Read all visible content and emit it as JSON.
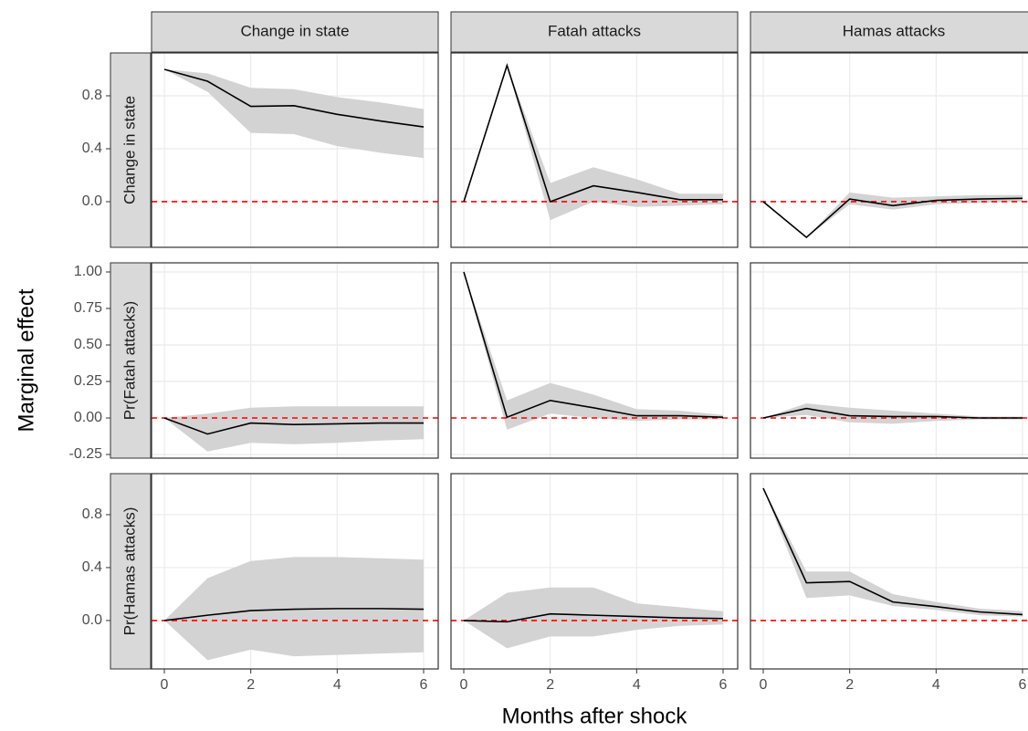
{
  "chart_data": {
    "type": "line",
    "x_label": "Months after shock",
    "y_label": "Marginal effect",
    "x": [
      0,
      1,
      2,
      3,
      4,
      5,
      6
    ],
    "xlim": [
      -0.296,
      6.338
    ],
    "xticks": [
      0,
      2,
      4,
      6
    ],
    "line_color": "#000000",
    "band_color": "#d3d3d3",
    "reference_line": 0,
    "reference_color": "#ff0000",
    "grid": true,
    "columns": [
      "Change in state",
      "Fatah attacks",
      "Hamas attacks"
    ],
    "rows": [
      {
        "strip": "Change in state",
        "ylim": [
          -0.345,
          1.124
        ],
        "yticks": [
          {
            "value": 0,
            "label": "0.0"
          },
          0.4,
          0.8
        ]
      },
      {
        "strip": "Pr(Fatah attacks)",
        "ylim": [
          -0.275,
          1.0625
        ],
        "yticks": [
          {
            "value": -0.25,
            "label": "-0.25"
          },
          {
            "value": 0,
            "label": "0.00"
          },
          0.25,
          {
            "value": 0.5,
            "label": "0.50"
          },
          0.75,
          {
            "value": 1,
            "label": "1.00"
          }
        ]
      },
      {
        "strip": "Pr(Hamas attacks)",
        "ylim": [
          -0.366,
          1.11
        ],
        "yticks": [
          {
            "value": 0,
            "label": "0.0"
          },
          0.4,
          0.8
        ]
      }
    ],
    "panels": [
      {
        "row": 0,
        "column": 0,
        "values": [
          1.0,
          0.91,
          0.72,
          0.725,
          0.66,
          0.61,
          0.565
        ],
        "lower": [
          1.0,
          0.83,
          0.52,
          0.51,
          0.42,
          0.37,
          0.33
        ],
        "upper": [
          1.0,
          0.97,
          0.86,
          0.85,
          0.79,
          0.75,
          0.7
        ]
      },
      {
        "row": 0,
        "column": 1,
        "values": [
          0,
          1.03,
          0.0,
          0.12,
          0.07,
          0.015,
          0.015
        ],
        "lower": [
          0,
          1.03,
          -0.14,
          0.0,
          -0.04,
          -0.03,
          -0.02
        ],
        "upper": [
          0,
          1.03,
          0.14,
          0.26,
          0.17,
          0.06,
          0.06
        ]
      },
      {
        "row": 0,
        "column": 2,
        "values": [
          0,
          -0.27,
          0.02,
          -0.03,
          0.01,
          0.02,
          0.025
        ],
        "lower": [
          0,
          -0.27,
          -0.02,
          -0.06,
          -0.02,
          -0.01,
          0.0
        ],
        "upper": [
          0,
          -0.27,
          0.07,
          0.03,
          0.04,
          0.05,
          0.05
        ]
      },
      {
        "row": 1,
        "column": 0,
        "values": [
          0,
          -0.11,
          -0.035,
          -0.045,
          -0.04,
          -0.035,
          -0.035
        ],
        "lower": [
          0,
          -0.23,
          -0.17,
          -0.18,
          -0.17,
          -0.155,
          -0.145
        ],
        "upper": [
          0,
          0.03,
          0.07,
          0.08,
          0.08,
          0.08,
          0.08
        ]
      },
      {
        "row": 1,
        "column": 1,
        "values": [
          1.0,
          0.005,
          0.12,
          0.07,
          0.015,
          0.015,
          0.005
        ],
        "lower": [
          1.0,
          -0.08,
          0.03,
          0.0,
          -0.02,
          -0.01,
          -0.01
        ],
        "upper": [
          1.0,
          0.12,
          0.24,
          0.16,
          0.06,
          0.05,
          0.02
        ]
      },
      {
        "row": 1,
        "column": 2,
        "values": [
          0,
          0.065,
          0.015,
          0.01,
          0.01,
          0.0,
          0.0
        ],
        "lower": [
          0,
          0.02,
          -0.03,
          -0.04,
          -0.02,
          -0.01,
          -0.01
        ],
        "upper": [
          0,
          0.1,
          0.07,
          0.05,
          0.03,
          0.01,
          0.01
        ]
      },
      {
        "row": 2,
        "column": 0,
        "values": [
          0,
          0.04,
          0.075,
          0.085,
          0.09,
          0.09,
          0.085
        ],
        "lower": [
          0,
          -0.3,
          -0.22,
          -0.27,
          -0.26,
          -0.25,
          -0.24
        ],
        "upper": [
          0,
          0.32,
          0.45,
          0.48,
          0.48,
          0.47,
          0.46
        ]
      },
      {
        "row": 2,
        "column": 1,
        "values": [
          0,
          -0.01,
          0.05,
          0.04,
          0.03,
          0.02,
          0.015
        ],
        "lower": [
          0,
          -0.21,
          -0.12,
          -0.12,
          -0.07,
          -0.04,
          -0.03
        ],
        "upper": [
          0,
          0.21,
          0.25,
          0.25,
          0.13,
          0.1,
          0.07
        ]
      },
      {
        "row": 2,
        "column": 2,
        "values": [
          1.0,
          0.285,
          0.295,
          0.14,
          0.105,
          0.065,
          0.045
        ],
        "lower": [
          1.0,
          0.17,
          0.19,
          0.11,
          0.08,
          0.04,
          0.03
        ],
        "upper": [
          1.0,
          0.37,
          0.37,
          0.2,
          0.14,
          0.09,
          0.07
        ]
      }
    ]
  }
}
